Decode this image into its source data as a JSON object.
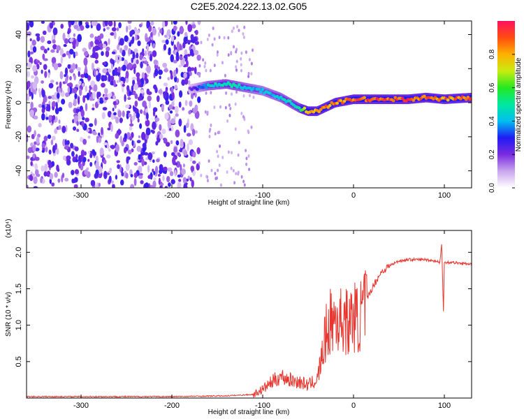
{
  "title": "C2E5.2024.222.13.02.G05",
  "chart_data": [
    {
      "type": "heatmap",
      "xlabel": "Height of straight line (km)",
      "ylabel": "Frequency (Hz)",
      "xlim": [
        -360,
        130
      ],
      "ylim": [
        -50,
        48
      ],
      "x_ticks": [
        -300,
        -200,
        -100,
        0,
        100
      ],
      "y_ticks": [
        -40,
        -20,
        0,
        20,
        40
      ],
      "colorbar": {
        "label": "Normalized spectral amplitude",
        "range": [
          0,
          1
        ],
        "ticks": [
          0.0,
          0.2,
          0.4,
          0.6,
          0.8
        ],
        "tick_labels": [
          "0.0",
          "0.2",
          "0.4",
          "0.6",
          "0.8"
        ]
      },
      "noise_region": {
        "x_range": [
          -360,
          -170
        ],
        "amplitude": 0.15
      },
      "ridge": {
        "x": [
          -180,
          -160,
          -140,
          -120,
          -100,
          -80,
          -60,
          -50,
          -40,
          -20,
          0,
          20,
          40,
          60,
          80,
          100,
          130
        ],
        "y": [
          8,
          10,
          11,
          9,
          7,
          3,
          -3,
          -5,
          -5,
          0,
          2,
          2,
          2,
          2,
          3,
          2,
          3
        ],
        "amplitude": [
          0.2,
          0.45,
          0.5,
          0.45,
          0.4,
          0.45,
          0.5,
          0.85,
          0.85,
          0.9,
          0.95,
          0.95,
          0.95,
          0.95,
          0.9,
          0.9,
          0.9
        ]
      }
    },
    {
      "type": "line",
      "xlabel": "Height of straight line (km)",
      "ylabel": "SNR (10 * v/v)",
      "y_multiplier": "(x10⁴)",
      "xlim": [
        -360,
        130
      ],
      "ylim": [
        0,
        2.3
      ],
      "x_ticks": [
        -300,
        -200,
        -100,
        0,
        100
      ],
      "y_ticks": [
        0.5,
        1.0,
        1.5,
        2.0
      ],
      "y_tick_labels": [
        "0.5",
        "1.0",
        "1.5",
        "2.0"
      ],
      "color": "#e8352e",
      "series": [
        {
          "x": [
            -360,
            -300,
            -200,
            -140,
            -110,
            -100,
            -90,
            -80,
            -70,
            -60,
            -50,
            -40,
            -35,
            -30,
            -25,
            -20,
            -15,
            -10,
            -5,
            0,
            5,
            10,
            20,
            30,
            40,
            50,
            60,
            70,
            80,
            90,
            95,
            97,
            99,
            100,
            105,
            110,
            120,
            130
          ],
          "y": [
            0.02,
            0.02,
            0.02,
            0.03,
            0.05,
            0.12,
            0.22,
            0.3,
            0.25,
            0.22,
            0.18,
            0.25,
            0.55,
            0.9,
            1.05,
            1.1,
            1.05,
            1.1,
            1.0,
            1.15,
            1.05,
            1.2,
            1.5,
            1.72,
            1.82,
            1.88,
            1.9,
            1.9,
            1.9,
            1.88,
            1.86,
            2.1,
            1.2,
            1.87,
            1.86,
            1.86,
            1.85,
            1.83
          ]
        }
      ]
    }
  ]
}
